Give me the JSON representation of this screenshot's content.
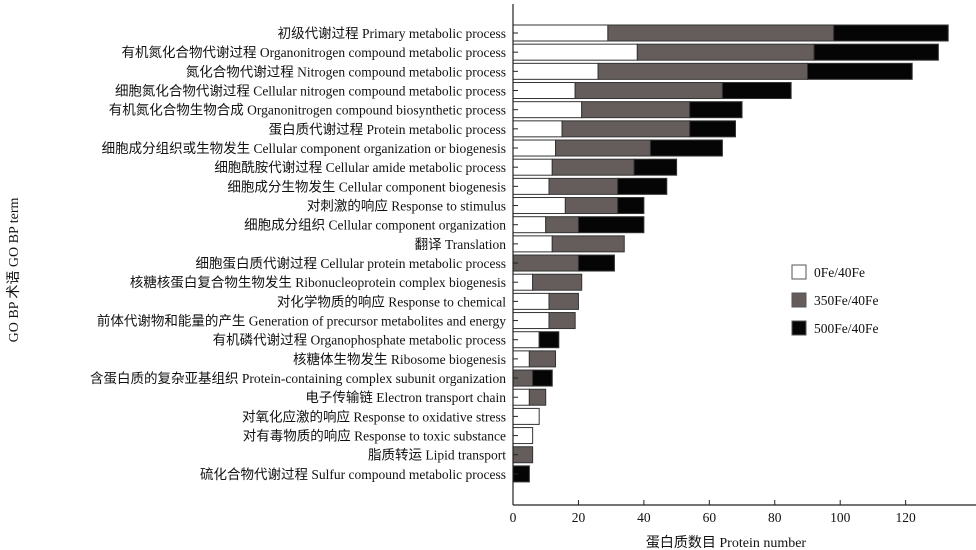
{
  "chart_data": {
    "type": "bar",
    "orientation": "horizontal",
    "stacked": true,
    "title": "",
    "xlabel": "蛋白质数目 Protein number",
    "ylabel": "GO BP 术语  GO BP term",
    "xlim": [
      0,
      135
    ],
    "xticks": [
      0,
      20,
      40,
      60,
      80,
      100,
      120
    ],
    "grid": false,
    "legend_position": "right-middle",
    "categories": [
      "初级代谢过程 Primary metabolic process",
      "有机氮化合物代谢过程 Organonitrogen compound metabolic process",
      "氮化合物代谢过程 Nitrogen compound metabolic process",
      "细胞氮化合物代谢过程 Cellular nitrogen compound metabolic process",
      "有机氮化合物生物合成 Organonitrogen compound biosynthetic process",
      "蛋白质代谢过程 Protein metabolic process",
      "细胞成分组织或生物发生 Cellular component organization or biogenesis",
      "细胞酰胺代谢过程 Cellular amide metabolic process",
      "细胞成分生物发生 Cellular component biogenesis",
      "对刺激的响应 Response to stimulus",
      "细胞成分组织 Cellular component organization",
      "翻译 Translation",
      "细胞蛋白质代谢过程 Cellular protein metabolic process",
      "核糖核蛋白复合物生物发生 Ribonucleoprotein complex biogenesis",
      "对化学物质的响应 Response to chemical",
      "前体代谢物和能量的产生 Generation of precursor metabolites and energy",
      "有机磷代谢过程 Organophosphate metabolic process",
      "核糖体生物发生 Ribosome biogenesis",
      "含蛋白质的复杂亚基组织 Protein-containing complex subunit organization",
      "电子传输链 Electron transport chain",
      "对氧化应激的响应 Response to oxidative stress",
      "对有毒物质的响应 Response to toxic substance",
      "脂质转运 Lipid transport",
      "硫化合物代谢过程 Sulfur compound metabolic process"
    ],
    "series": [
      {
        "name": "0Fe/40Fe",
        "color": "#ffffff",
        "values": [
          29,
          38,
          26,
          19,
          21,
          15,
          13,
          12,
          11,
          16,
          10,
          12,
          0,
          6,
          11,
          11,
          8,
          5,
          0,
          5,
          8,
          6,
          0,
          0
        ]
      },
      {
        "name": "350Fe/40Fe",
        "color": "#655d5b",
        "values": [
          69,
          54,
          64,
          45,
          33,
          39,
          29,
          25,
          21,
          16,
          10,
          22,
          20,
          15,
          9,
          8,
          0,
          8,
          6,
          5,
          0,
          0,
          6,
          0
        ]
      },
      {
        "name": "500Fe/40Fe",
        "color": "#050505",
        "values": [
          35,
          38,
          32,
          21,
          16,
          14,
          22,
          13,
          15,
          8,
          20,
          0,
          11,
          0,
          0,
          0,
          6,
          0,
          6,
          0,
          0,
          0,
          0,
          5
        ]
      }
    ]
  }
}
